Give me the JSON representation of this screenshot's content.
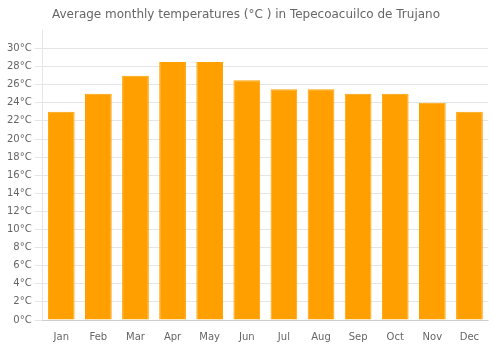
{
  "chart_data": {
    "type": "bar",
    "title": "Average monthly temperatures (°C ) in Tepecoacuilco de Trujano",
    "categories": [
      "Jan",
      "Feb",
      "Mar",
      "Apr",
      "May",
      "Jun",
      "Jul",
      "Aug",
      "Sep",
      "Oct",
      "Nov",
      "Dec"
    ],
    "values": [
      23,
      25,
      27,
      28.5,
      28.5,
      26.5,
      25.5,
      25.5,
      25,
      25,
      24,
      23
    ],
    "color": "#FFA000",
    "ylim": [
      0,
      32
    ],
    "yticks": [
      {
        "value": 0,
        "label": "0°C"
      },
      {
        "value": 2,
        "label": "2°C"
      },
      {
        "value": 4,
        "label": "4°C"
      },
      {
        "value": 6,
        "label": "6°C"
      },
      {
        "value": 8,
        "label": "8°C"
      },
      {
        "value": 10,
        "label": "10°C"
      },
      {
        "value": 12,
        "label": "12°C"
      },
      {
        "value": 14,
        "label": "14°C"
      },
      {
        "value": 16,
        "label": "16°C"
      },
      {
        "value": 18,
        "label": "18°C"
      },
      {
        "value": 20,
        "label": "20°C"
      },
      {
        "value": 22,
        "label": "22°C"
      },
      {
        "value": 24,
        "label": "24°C"
      },
      {
        "value": 26,
        "label": "26°C"
      },
      {
        "value": 28,
        "label": "28°C"
      },
      {
        "value": 30,
        "label": "30°C"
      }
    ],
    "grid": true
  }
}
